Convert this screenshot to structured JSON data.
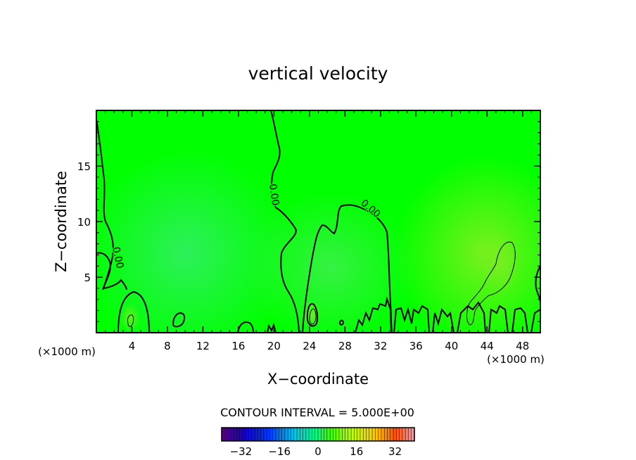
{
  "chart_data": {
    "type": "heatmap",
    "title": "vertical velocity",
    "xlabel": "X−coordinate",
    "ylabel": "Z−coordinate",
    "x_unit_label": "(×1000 m)",
    "z_unit_label": "(×1000 m)",
    "xlim": [
      0,
      50
    ],
    "ylim": [
      0,
      20
    ],
    "x_ticks": [
      "4",
      "8",
      "12",
      "16",
      "20",
      "24",
      "28",
      "32",
      "36",
      "40",
      "44",
      "48"
    ],
    "y_ticks": [
      "5",
      "10",
      "15"
    ],
    "contour_label": "0.00",
    "contour_interval_text": "CONTOUR INTERVAL = 5.000E+00",
    "colorbar": {
      "min": -40,
      "max": 40,
      "ticks": [
        "−32",
        "−16",
        "0",
        "16",
        "32"
      ],
      "tick_values": [
        -32,
        -16,
        0,
        16,
        32
      ]
    },
    "background_color": "#00ff00"
  }
}
